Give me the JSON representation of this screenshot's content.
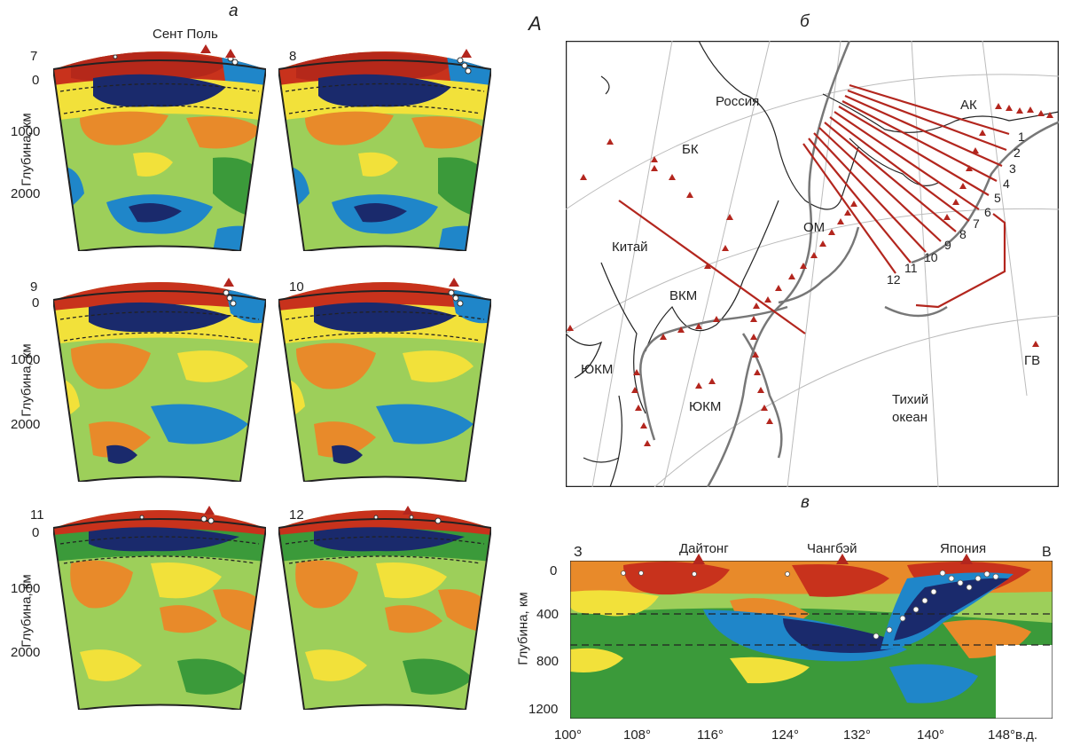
{
  "panel_a": {
    "letter": "а",
    "station_label": "Сент Поль",
    "y_axis_label": "Глубина, км",
    "y_ticks": [
      "0",
      "1000",
      "2000"
    ],
    "sections": [
      {
        "num": "7"
      },
      {
        "num": "8"
      },
      {
        "num": "9"
      },
      {
        "num": "10"
      },
      {
        "num": "11"
      },
      {
        "num": "12"
      }
    ]
  },
  "center_label": "А",
  "panel_b": {
    "letter": "б",
    "labels": {
      "russia": "Россия",
      "bk": "БК",
      "china": "Китай",
      "om": "ОМ",
      "vkm": "ВКМ",
      "ukm1": "ЮКМ",
      "ukm2": "ЮКМ",
      "ak": "АК",
      "gv": "ГВ",
      "pacific1": "Тихий",
      "pacific2": "океан"
    },
    "profile_numbers": [
      "1",
      "2",
      "3",
      "4",
      "5",
      "6",
      "7",
      "8",
      "9",
      "10",
      "11",
      "12"
    ]
  },
  "panel_v": {
    "letter": "в",
    "west": "З",
    "east": "В",
    "volcanoes": [
      "Дайтонг",
      "Чангбэй",
      "Япония"
    ],
    "y_axis_label": "Глубина, км",
    "y_ticks": [
      "0",
      "400",
      "800",
      "1200"
    ],
    "x_ticks": [
      "100°",
      "108°",
      "116°",
      "124°",
      "132°",
      "140°",
      "148°в.д."
    ]
  },
  "colors": {
    "red": "#c8321c",
    "orange": "#e88a2a",
    "yellow": "#f2e13a",
    "lightgreen": "#9dcf5a",
    "green": "#3b9a3a",
    "blue": "#1f86c9",
    "darkblue": "#1a2a6c",
    "marker": "#b3261e"
  }
}
